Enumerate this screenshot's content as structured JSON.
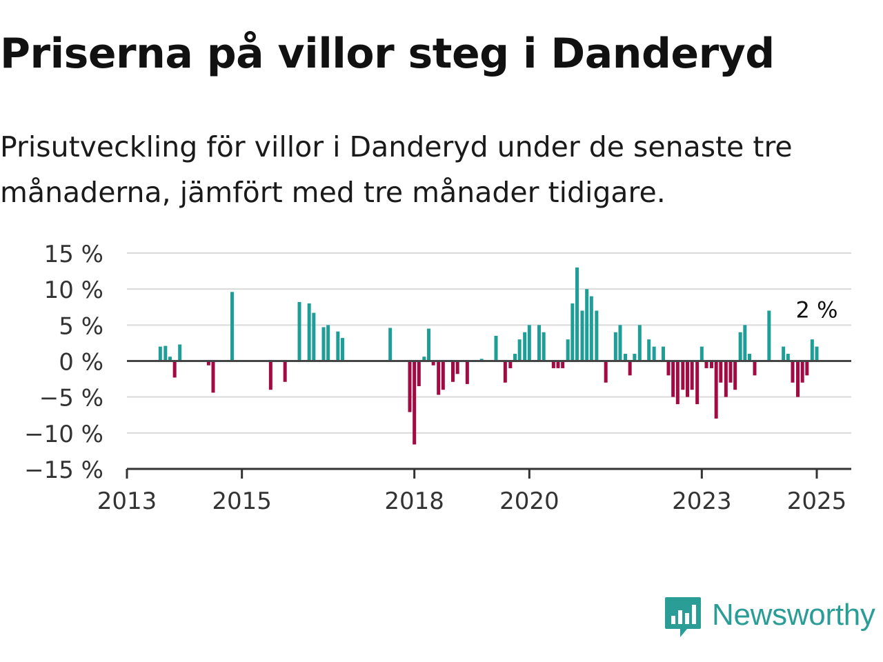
{
  "title": "Priserna på villor steg i Danderyd",
  "subtitle": "Prisutveckling för villor i Danderyd under de senaste tre månaderna, jämfört med tre månader tidigare.",
  "brand": {
    "name": "Newsworthy",
    "icon": "newsworthy-logo-icon",
    "color": "#2a9d96"
  },
  "chart_data": {
    "type": "bar",
    "title": "",
    "xlabel": "",
    "ylabel": "",
    "ylim": [
      -15,
      15
    ],
    "y_ticks": [
      15,
      10,
      5,
      0,
      -5,
      -10,
      -15
    ],
    "y_tick_labels": [
      "15 %",
      "10 %",
      "5 %",
      "0 %",
      "−5 %",
      "−10 %",
      "−15 %"
    ],
    "x_ticks": [
      2013,
      2015,
      2018,
      2020,
      2023,
      2025
    ],
    "x_tick_labels": [
      "2013",
      "2015",
      "2018",
      "2020",
      "2023",
      "2025"
    ],
    "xlim": [
      2013,
      2025.6
    ],
    "grid": true,
    "positive_color": "#1e9e97",
    "negative_color": "#a10a43",
    "last_value_label": "2 %",
    "points": [
      {
        "x": 2013.58,
        "y": 2.0
      },
      {
        "x": 2013.67,
        "y": 2.1
      },
      {
        "x": 2013.75,
        "y": 0.6
      },
      {
        "x": 2013.83,
        "y": -2.3
      },
      {
        "x": 2013.92,
        "y": 2.3
      },
      {
        "x": 2014.42,
        "y": -0.6
      },
      {
        "x": 2014.5,
        "y": -4.4
      },
      {
        "x": 2014.83,
        "y": 9.6
      },
      {
        "x": 2015.5,
        "y": -4.0
      },
      {
        "x": 2015.75,
        "y": -2.9
      },
      {
        "x": 2016.0,
        "y": 8.2
      },
      {
        "x": 2016.17,
        "y": 8.0
      },
      {
        "x": 2016.25,
        "y": 6.7
      },
      {
        "x": 2016.42,
        "y": 4.7
      },
      {
        "x": 2016.5,
        "y": 5.0
      },
      {
        "x": 2016.67,
        "y": 4.1
      },
      {
        "x": 2016.75,
        "y": 3.2
      },
      {
        "x": 2017.58,
        "y": 4.6
      },
      {
        "x": 2017.92,
        "y": -7.1
      },
      {
        "x": 2018.0,
        "y": -11.6
      },
      {
        "x": 2018.08,
        "y": -3.5
      },
      {
        "x": 2018.17,
        "y": 0.6
      },
      {
        "x": 2018.25,
        "y": 4.5
      },
      {
        "x": 2018.33,
        "y": -0.6
      },
      {
        "x": 2018.42,
        "y": -4.7
      },
      {
        "x": 2018.5,
        "y": -4.0
      },
      {
        "x": 2018.67,
        "y": -2.9
      },
      {
        "x": 2018.75,
        "y": -1.8
      },
      {
        "x": 2018.92,
        "y": -3.2
      },
      {
        "x": 2019.17,
        "y": 0.3
      },
      {
        "x": 2019.42,
        "y": 3.5
      },
      {
        "x": 2019.58,
        "y": -3.0
      },
      {
        "x": 2019.67,
        "y": -1.0
      },
      {
        "x": 2019.75,
        "y": 1.0
      },
      {
        "x": 2019.83,
        "y": 3.0
      },
      {
        "x": 2019.92,
        "y": 4.0
      },
      {
        "x": 2020.0,
        "y": 5.0
      },
      {
        "x": 2020.17,
        "y": 5.0
      },
      {
        "x": 2020.25,
        "y": 4.0
      },
      {
        "x": 2020.42,
        "y": -1.0
      },
      {
        "x": 2020.5,
        "y": -1.0
      },
      {
        "x": 2020.58,
        "y": -1.0
      },
      {
        "x": 2020.67,
        "y": 3.0
      },
      {
        "x": 2020.75,
        "y": 8.0
      },
      {
        "x": 2020.83,
        "y": 13.0
      },
      {
        "x": 2020.92,
        "y": 7.0
      },
      {
        "x": 2021.0,
        "y": 10.0
      },
      {
        "x": 2021.08,
        "y": 9.0
      },
      {
        "x": 2021.17,
        "y": 7.0
      },
      {
        "x": 2021.33,
        "y": -3.0
      },
      {
        "x": 2021.5,
        "y": 4.0
      },
      {
        "x": 2021.58,
        "y": 5.0
      },
      {
        "x": 2021.67,
        "y": 1.0
      },
      {
        "x": 2021.75,
        "y": -2.0
      },
      {
        "x": 2021.83,
        "y": 1.0
      },
      {
        "x": 2021.92,
        "y": 5.0
      },
      {
        "x": 2022.08,
        "y": 3.0
      },
      {
        "x": 2022.17,
        "y": 2.0
      },
      {
        "x": 2022.33,
        "y": 2.0
      },
      {
        "x": 2022.42,
        "y": -2.0
      },
      {
        "x": 2022.5,
        "y": -5.0
      },
      {
        "x": 2022.58,
        "y": -6.0
      },
      {
        "x": 2022.67,
        "y": -4.0
      },
      {
        "x": 2022.75,
        "y": -5.0
      },
      {
        "x": 2022.83,
        "y": -4.0
      },
      {
        "x": 2022.92,
        "y": -6.0
      },
      {
        "x": 2023.0,
        "y": 2.0
      },
      {
        "x": 2023.08,
        "y": -1.0
      },
      {
        "x": 2023.17,
        "y": -1.0
      },
      {
        "x": 2023.25,
        "y": -8.0
      },
      {
        "x": 2023.33,
        "y": -3.0
      },
      {
        "x": 2023.42,
        "y": -5.0
      },
      {
        "x": 2023.5,
        "y": -3.0
      },
      {
        "x": 2023.58,
        "y": -4.0
      },
      {
        "x": 2023.67,
        "y": 4.0
      },
      {
        "x": 2023.75,
        "y": 5.0
      },
      {
        "x": 2023.83,
        "y": 1.0
      },
      {
        "x": 2023.92,
        "y": -2.0
      },
      {
        "x": 2024.17,
        "y": 7.0
      },
      {
        "x": 2024.42,
        "y": 2.0
      },
      {
        "x": 2024.5,
        "y": 1.0
      },
      {
        "x": 2024.58,
        "y": -3.0
      },
      {
        "x": 2024.67,
        "y": -5.0
      },
      {
        "x": 2024.75,
        "y": -3.0
      },
      {
        "x": 2024.83,
        "y": -2.0
      },
      {
        "x": 2024.92,
        "y": 3.0
      },
      {
        "x": 2025.0,
        "y": 2.0
      }
    ]
  }
}
